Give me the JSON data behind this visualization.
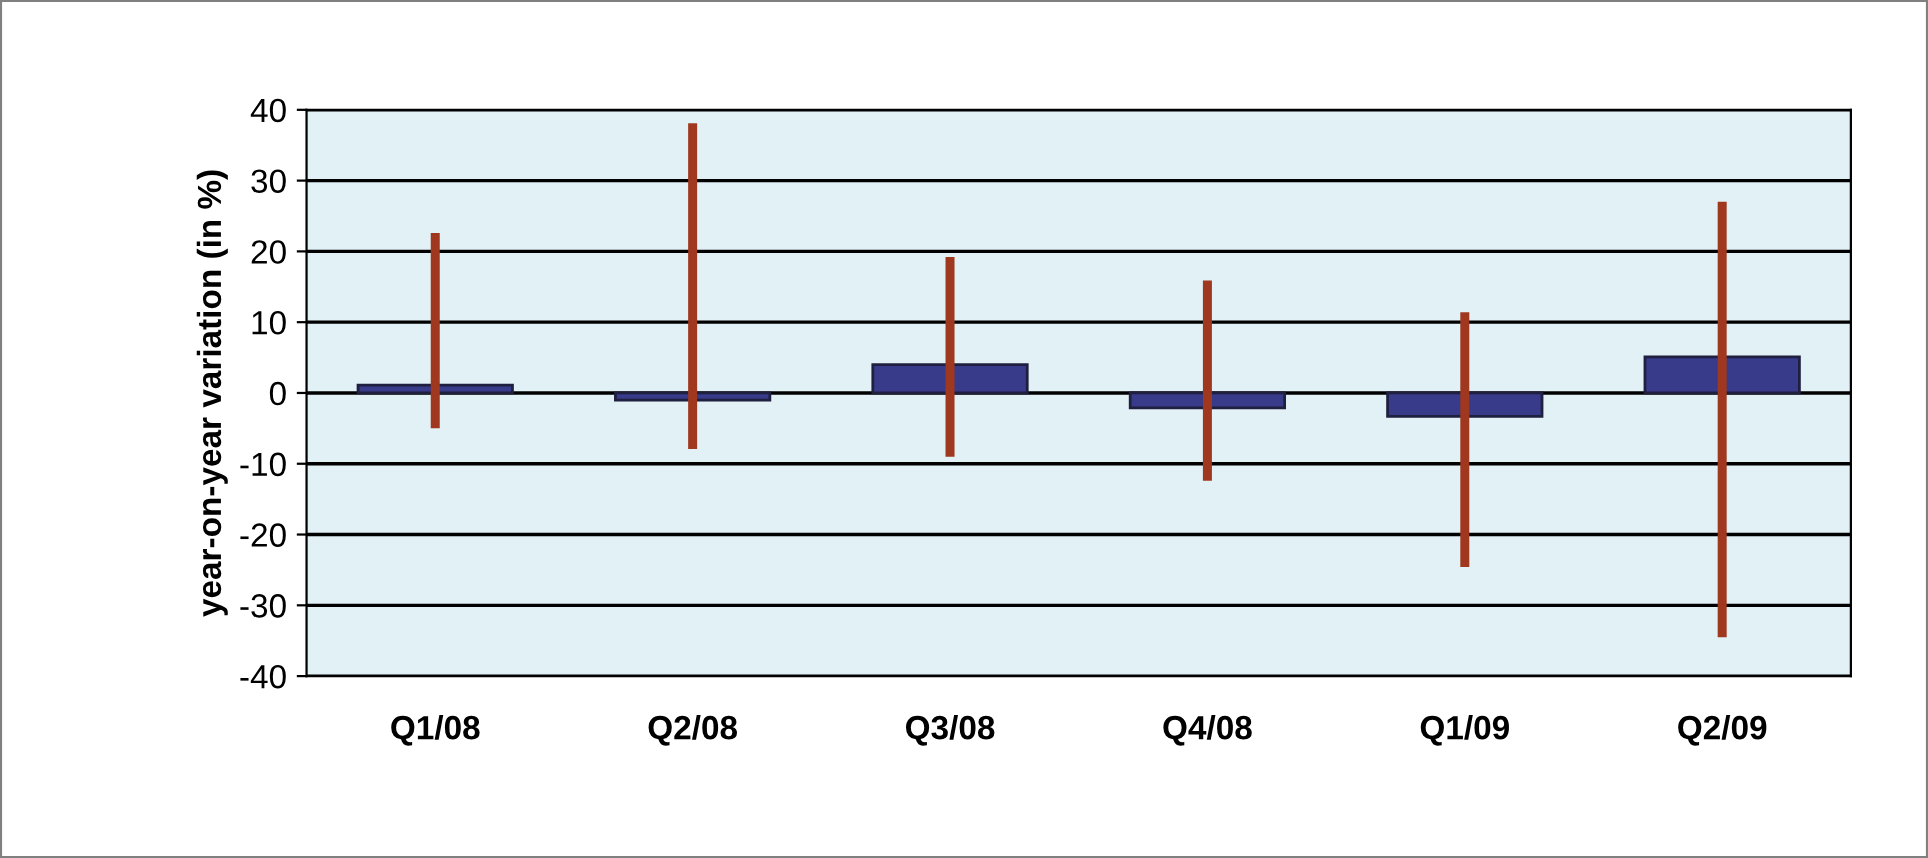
{
  "chart_data": {
    "type": "bar",
    "ylabel": "year-on-year variation (in %)",
    "categories": [
      "Q1/08",
      "Q2/08",
      "Q3/08",
      "Q4/08",
      "Q1/09",
      "Q2/09"
    ],
    "series": [
      {
        "color": "#383a8a",
        "values": [
          1.1,
          -1.0,
          4.0,
          -2.1,
          -3.3,
          5.1
        ]
      },
      {
        "color": "#a0381f",
        "base": [
          -5.0,
          -7.9,
          -9.0,
          -12.4,
          -24.6,
          -34.5
        ],
        "values": [
          27.6,
          46.0,
          28.2,
          28.3,
          36.0,
          61.5
        ]
      }
    ],
    "ylim": [
      -40,
      40
    ],
    "yticks": [
      -40,
      -30,
      -20,
      -10,
      0,
      10,
      20,
      30,
      40
    ],
    "grid": "y",
    "legend": false
  }
}
